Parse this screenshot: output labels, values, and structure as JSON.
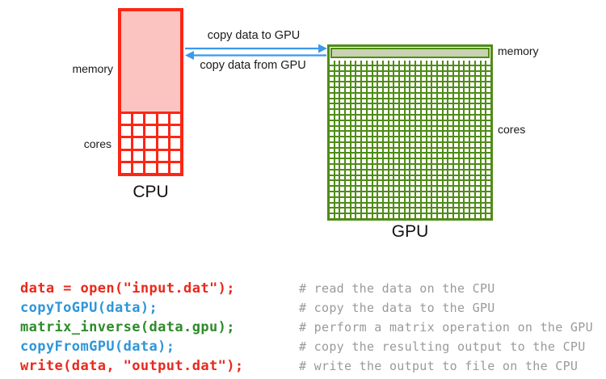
{
  "diagram": {
    "cpu": {
      "title": "CPU",
      "memory_label": "memory",
      "cores_label": "cores",
      "border_color": "#fb2715",
      "memory_fill": "#fcc4c0",
      "grid": {
        "rows": 5,
        "cols": 5
      }
    },
    "gpu": {
      "title": "GPU",
      "memory_label": "memory",
      "cores_label": "cores",
      "border_color": "#4f8c15",
      "memory_fill": "#c9d2b2",
      "grid": {
        "rows": 29,
        "cols": 30
      }
    },
    "arrows": {
      "color": "#3b99ec",
      "to_gpu_label": "copy data to GPU",
      "from_gpu_label": "copy data from GPU"
    }
  },
  "code": {
    "comment_color": "#9a9a9a",
    "lines": [
      {
        "code": "data = open(\"input.dat\");",
        "color": "#e8291c",
        "comment": "# read the data on the CPU"
      },
      {
        "code": "copyToGPU(data);",
        "color": "#2e96d8",
        "comment": "# copy the data to the GPU"
      },
      {
        "code": "matrix_inverse(data.gpu);",
        "color": "#2e8b2a",
        "comment": "# perform a matrix operation on the GPU"
      },
      {
        "code": "copyFromGPU(data);",
        "color": "#2e96d8",
        "comment": "# copy the resulting output to the CPU"
      },
      {
        "code": "write(data, \"output.dat\");",
        "color": "#e8291c",
        "comment": "# write the output to file on the CPU"
      }
    ]
  }
}
